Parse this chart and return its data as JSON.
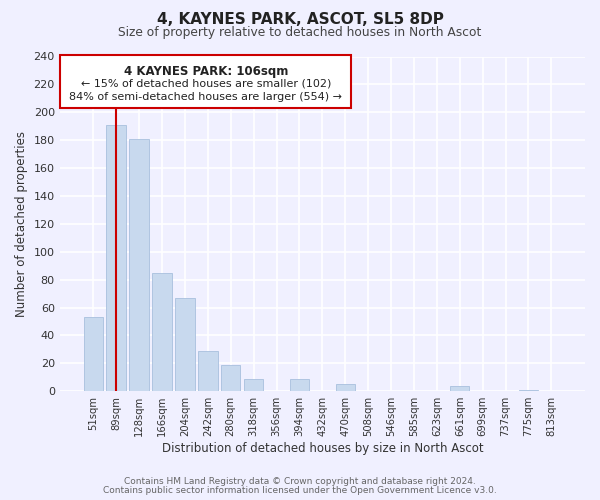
{
  "title": "4, KAYNES PARK, ASCOT, SL5 8DP",
  "subtitle": "Size of property relative to detached houses in North Ascot",
  "xlabel": "Distribution of detached houses by size in North Ascot",
  "ylabel": "Number of detached properties",
  "footer_line1": "Contains HM Land Registry data © Crown copyright and database right 2024.",
  "footer_line2": "Contains public sector information licensed under the Open Government Licence v3.0.",
  "categories": [
    "51sqm",
    "89sqm",
    "128sqm",
    "166sqm",
    "204sqm",
    "242sqm",
    "280sqm",
    "318sqm",
    "356sqm",
    "394sqm",
    "432sqm",
    "470sqm",
    "508sqm",
    "546sqm",
    "585sqm",
    "623sqm",
    "661sqm",
    "699sqm",
    "737sqm",
    "775sqm",
    "813sqm"
  ],
  "values": [
    53,
    191,
    181,
    85,
    67,
    29,
    19,
    9,
    0,
    9,
    0,
    5,
    0,
    0,
    0,
    0,
    4,
    0,
    0,
    1,
    0
  ],
  "bar_color": "#c8d9ee",
  "bar_edge_color": "#a8c0dd",
  "vline_x": 1,
  "vline_color": "#cc0000",
  "ylim": [
    0,
    240
  ],
  "yticks": [
    0,
    20,
    40,
    60,
    80,
    100,
    120,
    140,
    160,
    180,
    200,
    220,
    240
  ],
  "annotation_title": "4 KAYNES PARK: 106sqm",
  "annotation_line1": "← 15% of detached houses are smaller (102)",
  "annotation_line2": "84% of semi-detached houses are larger (554) →",
  "annotation_box_color": "#ffffff",
  "annotation_box_edge_color": "#cc0000",
  "bg_color": "#f0f0ff"
}
